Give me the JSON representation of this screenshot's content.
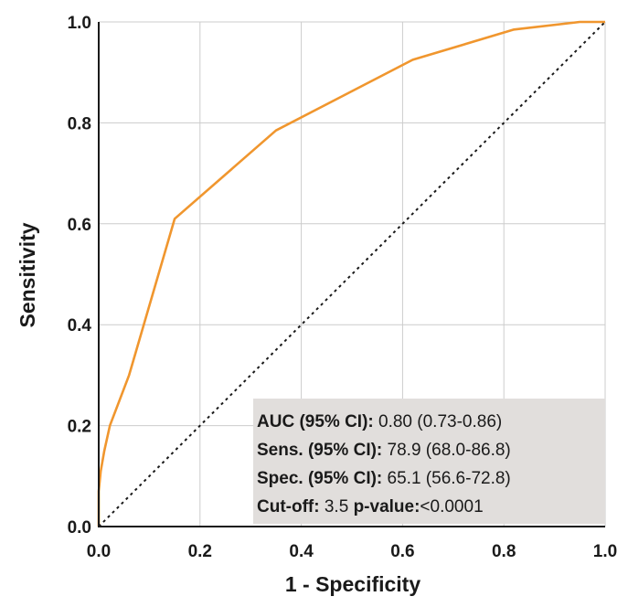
{
  "chart_data": {
    "type": "line",
    "title": "",
    "xlabel": "1 - Specificity",
    "ylabel": "Sensitivity",
    "xlim": [
      0,
      1
    ],
    "ylim": [
      0,
      1
    ],
    "xticks": [
      "0.0",
      "0.2",
      "0.4",
      "0.6",
      "0.8",
      "1.0"
    ],
    "yticks": [
      "0.0",
      "0.2",
      "0.4",
      "0.6",
      "0.8",
      "1.0"
    ],
    "grid": true,
    "series": [
      {
        "color": "#f0962e",
        "style": "solid",
        "x": [
          0.0,
          0.0,
          0.004,
          0.011,
          0.022,
          0.06,
          0.15,
          0.35,
          0.62,
          0.82,
          0.95,
          1.0
        ],
        "y": [
          0.0,
          0.07,
          0.11,
          0.15,
          0.2,
          0.3,
          0.61,
          0.785,
          0.925,
          0.985,
          1.0,
          1.0
        ]
      },
      {
        "color": "#1a1a1a",
        "style": "dotted",
        "x": [
          0,
          1
        ],
        "y": [
          0,
          1
        ]
      }
    ],
    "annotation": {
      "background": "#e1dedc",
      "lines": [
        [
          {
            "text": "AUC   (95% CI): ",
            "bold": true
          },
          {
            "text": "0.80 (0.73-0.86)",
            "bold": false
          }
        ],
        [
          {
            "text": "Sens. (95% CI): ",
            "bold": true
          },
          {
            "text": "78.9 (68.0-86.8)",
            "bold": false
          }
        ],
        [
          {
            "text": "Spec. (95% CI): ",
            "bold": true
          },
          {
            "text": "65.1 (56.6-72.8)",
            "bold": false
          }
        ],
        [
          {
            "text": "Cut-off: ",
            "bold": true
          },
          {
            "text": "3.5  ",
            "bold": false
          },
          {
            "text": "p-value:",
            "bold": true
          },
          {
            "text": "<0.0001",
            "bold": false
          }
        ]
      ]
    }
  }
}
